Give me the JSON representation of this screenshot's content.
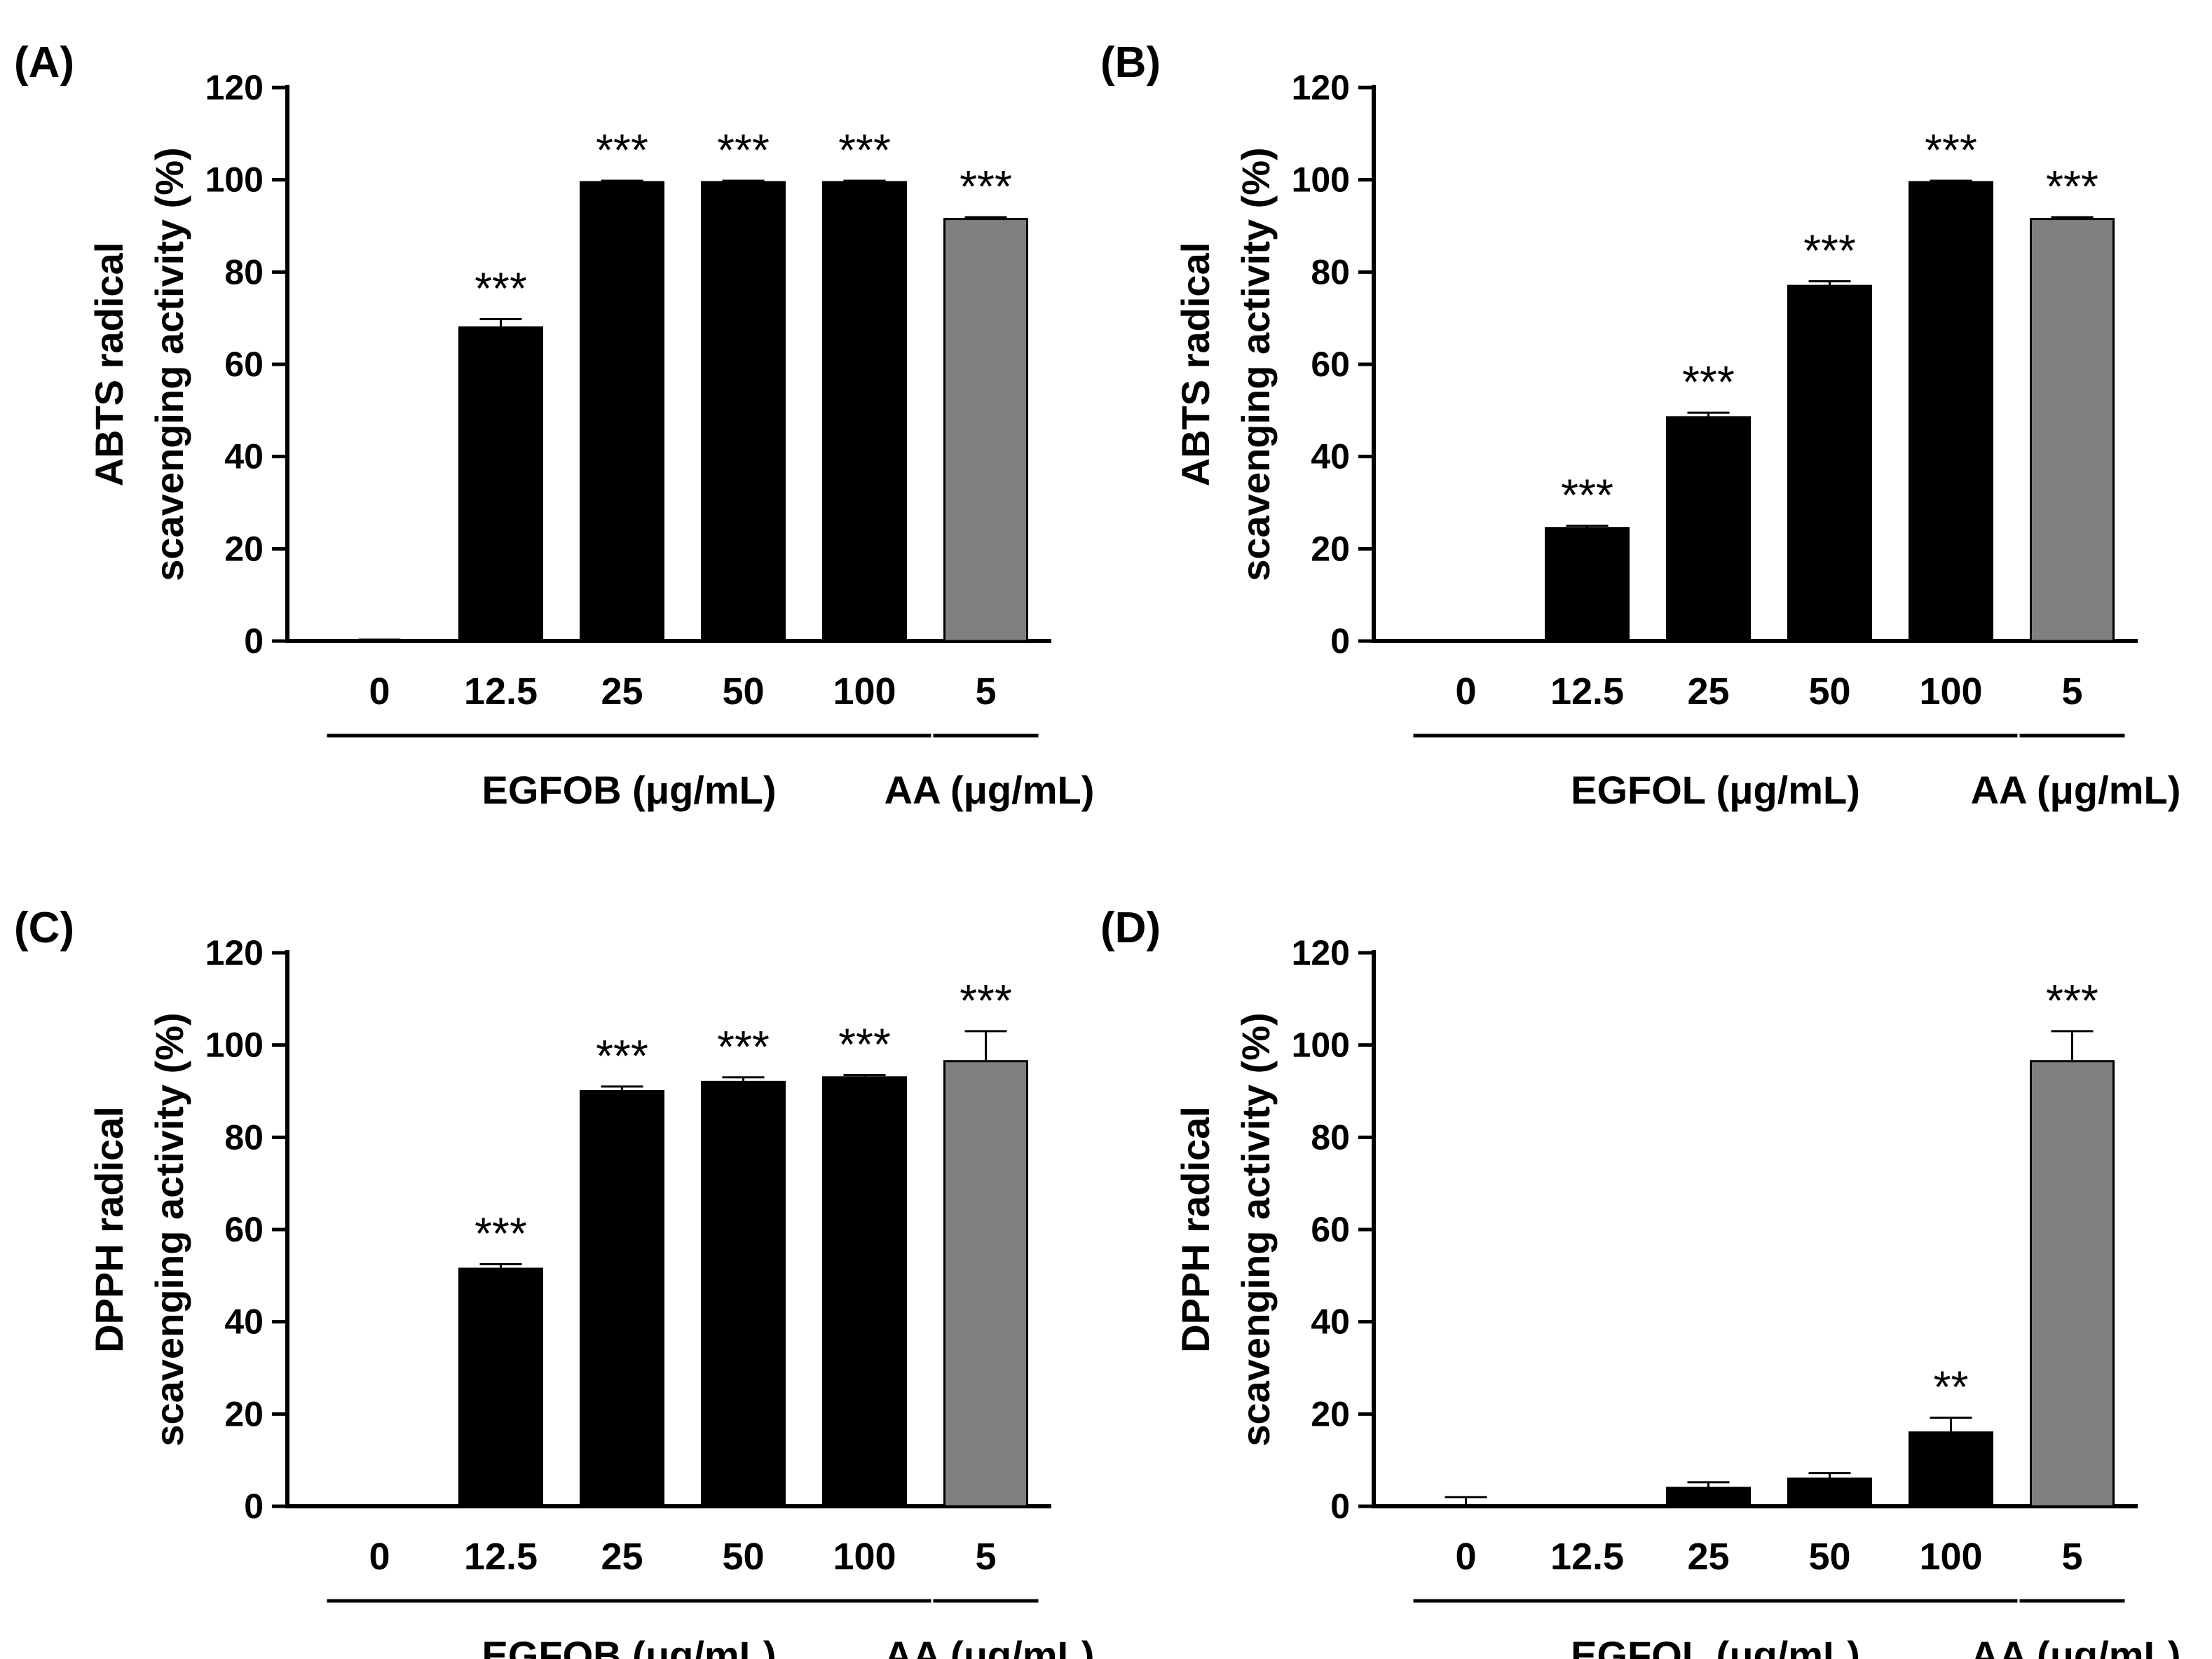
{
  "chart_data": [
    {
      "panel": "(A)",
      "type": "bar",
      "ylabel": [
        "ABTS radical",
        "scavenging activity (%)"
      ],
      "ylim": [
        0,
        120
      ],
      "yticks": [
        0,
        20,
        40,
        60,
        80,
        100,
        120
      ],
      "categories": [
        "0",
        "12.5",
        "25",
        "50",
        "100",
        "5"
      ],
      "values": [
        0,
        68,
        99.5,
        99.5,
        99.5,
        91.5
      ],
      "errors": [
        0.3,
        1.8,
        0.3,
        0.3,
        0.3,
        0.4
      ],
      "bar_colors": [
        "#000000",
        "#000000",
        "#000000",
        "#000000",
        "#000000",
        "#808080"
      ],
      "significance": [
        "",
        "***",
        "***",
        "***",
        "***",
        "***"
      ],
      "groups": [
        {
          "label": "EGFOB (μg/mL)",
          "from": 0,
          "to": 4
        },
        {
          "label": "AA (μg/mL)",
          "from": 5,
          "to": 5
        }
      ]
    },
    {
      "panel": "(B)",
      "type": "bar",
      "ylabel": [
        "ABTS radical",
        "scavenging activity (%)"
      ],
      "ylim": [
        0,
        120
      ],
      "yticks": [
        0,
        20,
        40,
        60,
        80,
        100,
        120
      ],
      "categories": [
        "0",
        "12.5",
        "25",
        "50",
        "100",
        "5"
      ],
      "values": [
        0,
        24.5,
        48.5,
        77,
        99.5,
        91.5
      ],
      "errors": [
        0,
        0.5,
        1.0,
        1.0,
        0.3,
        0.4
      ],
      "bar_colors": [
        "#000000",
        "#000000",
        "#000000",
        "#000000",
        "#000000",
        "#808080"
      ],
      "significance": [
        "",
        "***",
        "***",
        "***",
        "***",
        "***"
      ],
      "groups": [
        {
          "label": "EGFOL (μg/mL)",
          "from": 0,
          "to": 4
        },
        {
          "label": "AA (μg/mL)",
          "from": 5,
          "to": 5
        }
      ]
    },
    {
      "panel": "(C)",
      "type": "bar",
      "ylabel": [
        "DPPH radical",
        "scavenging activity (%)"
      ],
      "ylim": [
        0,
        120
      ],
      "yticks": [
        0,
        20,
        40,
        60,
        80,
        100,
        120
      ],
      "categories": [
        "0",
        "12.5",
        "25",
        "50",
        "100",
        "5"
      ],
      "values": [
        0,
        51.5,
        90,
        92,
        93,
        96.5
      ],
      "errors": [
        0,
        1.0,
        1.0,
        1.0,
        0.5,
        6.5
      ],
      "bar_colors": [
        "#000000",
        "#000000",
        "#000000",
        "#000000",
        "#000000",
        "#808080"
      ],
      "significance": [
        "",
        "***",
        "***",
        "***",
        "***",
        "***"
      ],
      "groups": [
        {
          "label": "EGFOB (μg/mL)",
          "from": 0,
          "to": 4
        },
        {
          "label": "AA (μg/mL)",
          "from": 5,
          "to": 5
        }
      ]
    },
    {
      "panel": "(D)",
      "type": "bar",
      "ylabel": [
        "DPPH radical",
        "scavenging activity (%)"
      ],
      "ylim": [
        0,
        120
      ],
      "yticks": [
        0,
        20,
        40,
        60,
        80,
        100,
        120
      ],
      "categories": [
        "0",
        "12.5",
        "25",
        "50",
        "100",
        "5"
      ],
      "values": [
        0,
        0,
        4,
        6,
        16,
        96.5
      ],
      "errors": [
        2,
        0,
        1.2,
        1.2,
        3.2,
        6.5
      ],
      "bar_colors": [
        "#000000",
        "#000000",
        "#000000",
        "#000000",
        "#000000",
        "#808080"
      ],
      "significance": [
        "",
        "",
        "",
        "",
        "**",
        "***"
      ],
      "groups": [
        {
          "label": "EGFOL (μg/mL)",
          "from": 0,
          "to": 4
        },
        {
          "label": "AA (μg/mL)",
          "from": 5,
          "to": 5
        }
      ]
    }
  ]
}
